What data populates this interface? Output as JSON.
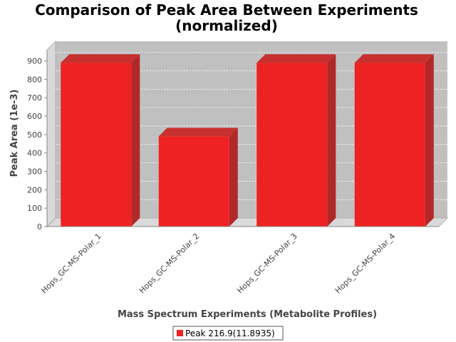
{
  "chart_data": {
    "type": "bar",
    "title": "Comparison of Peak Area Between Experiments",
    "subtitle": "(normalized)",
    "xlabel": "Mass Spectrum Experiments (Metabolite Profiles)",
    "ylabel": "Peak Area (1e-3)",
    "categories": [
      "Hops_GC-MS-Polar_1",
      "Hops_GC-MS-Polar_2",
      "Hops_GC-MS-Polar_3",
      "Hops_GC-MS-Polar_4"
    ],
    "series": [
      {
        "name": "Peak 216.9(11.8935)",
        "values": [
          890,
          490,
          890,
          890
        ],
        "color": "#ee2222"
      }
    ],
    "ylim": [
      0,
      960
    ],
    "yticks": [
      0,
      100,
      200,
      300,
      400,
      500,
      600,
      700,
      800,
      900
    ],
    "ytick_labels": [
      "0",
      "100",
      "200",
      "300",
      "400",
      "500",
      "600",
      "700",
      "800",
      "900"
    ],
    "grid": true,
    "legend_position": "bottom",
    "plot_background": "#c0c0c0"
  }
}
